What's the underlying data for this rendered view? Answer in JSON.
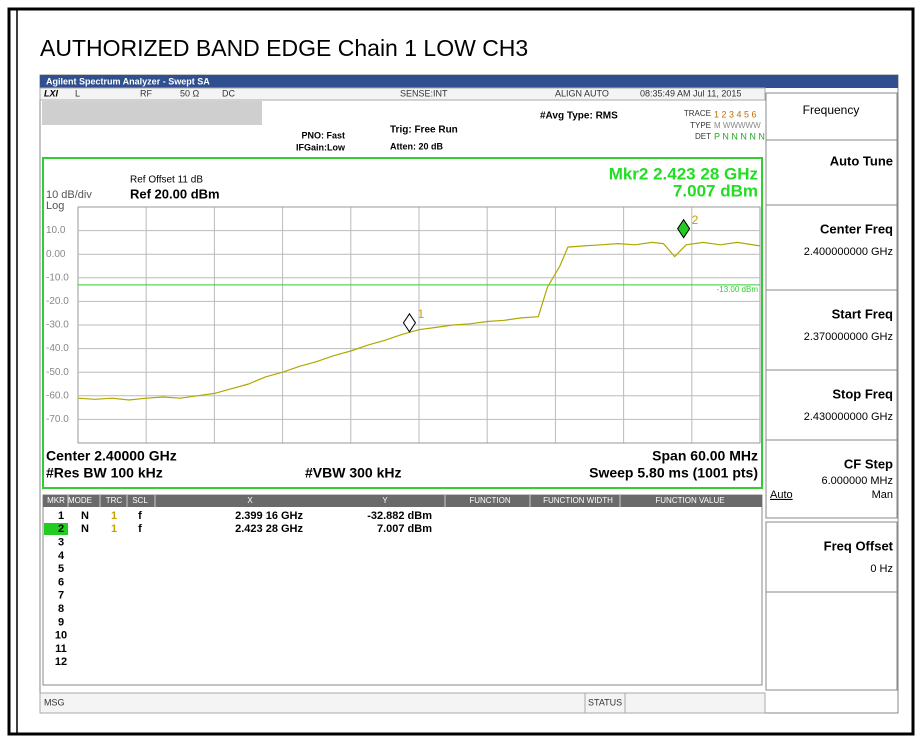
{
  "title": "AUTHORIZED BAND EDGE Chain 1 LOW CH3",
  "window_title": "Agilent Spectrum Analyzer - Swept SA",
  "status_bar": {
    "mode": "L",
    "rf": "RF",
    "impedance": "50 Ω",
    "coupling": "DC",
    "sense": "SENSE:INT",
    "align": "ALIGN AUTO",
    "time": "08:35:49 AM Jul 11, 2015"
  },
  "settings": {
    "avg_type": "#Avg Type: RMS",
    "pno": "PNO: Fast",
    "ifgain": "IFGain:Low",
    "trig": "Trig: Free Run",
    "atten": "Atten: 20 dB",
    "trace_label": "TRACE",
    "trace_value": "1 2 3 4 5 6",
    "type_label": "TYPE",
    "type_value": "M WWWWW",
    "det_label": "DET",
    "det_value": "P N N N N N"
  },
  "display": {
    "ref_offset": "Ref Offset 11 dB",
    "scale": "10 dB/div",
    "ref": "Ref 20.00 dBm",
    "log": "Log",
    "marker_readout": [
      "Mkr2 2.423 28 GHz",
      "7.007 dBm"
    ],
    "limit_label": "-13.00 dBm",
    "center": "Center 2.40000 GHz",
    "span": "Span 60.00 MHz",
    "rbw": "#Res BW 100 kHz",
    "vbw": "#VBW 300 kHz",
    "sweep": "Sweep  5.80 ms (1001 pts)"
  },
  "chart_data": {
    "type": "line",
    "xlim": [
      2.37,
      2.43
    ],
    "ylim": [
      -80,
      20
    ],
    "yticks": [
      {
        "value": 10,
        "label": "10.0"
      },
      {
        "value": 0,
        "label": "0.00"
      },
      {
        "value": -10,
        "label": "-10.0"
      },
      {
        "value": -20,
        "label": "-20.0"
      },
      {
        "value": -30,
        "label": "-30.0"
      },
      {
        "value": -40,
        "label": "-40.0"
      },
      {
        "value": -50,
        "label": "-50.0"
      },
      {
        "value": -60,
        "label": "-60.0"
      },
      {
        "value": -70,
        "label": "-70.0"
      }
    ],
    "grid": true,
    "limit": -13,
    "series": [
      {
        "color": "#b0a800",
        "x": [
          2.37,
          2.3715,
          2.373,
          2.3745,
          2.376,
          2.3775,
          2.379,
          2.3805,
          2.382,
          2.3835,
          2.385,
          2.3865,
          2.388,
          2.3895,
          2.391,
          2.3925,
          2.394,
          2.3955,
          2.397,
          2.3985,
          2.4,
          2.4015,
          2.403,
          2.4045,
          2.406,
          2.4075,
          2.409,
          2.4105,
          2.4113,
          2.4124,
          2.4131,
          2.4145,
          2.416,
          2.4175,
          2.419,
          2.4205,
          2.4215,
          2.4225,
          2.4235,
          2.425,
          2.4265,
          2.428,
          2.43
        ],
        "values": [
          -61,
          -61.5,
          -61,
          -61.8,
          -61,
          -60.5,
          -61,
          -60,
          -59,
          -57,
          -55,
          -52,
          -50,
          -47.5,
          -45.5,
          -43,
          -41,
          -38.5,
          -36.5,
          -34,
          -32,
          -31,
          -30,
          -29.5,
          -28.5,
          -28,
          -27,
          -26.5,
          -14,
          -5,
          3,
          3.5,
          4,
          4.5,
          4,
          5,
          4.5,
          -1,
          4,
          5,
          4,
          5,
          3.5
        ]
      }
    ],
    "markers": [
      {
        "label": "1",
        "x": 2.39916,
        "y": -32.882,
        "color": "#ffffff"
      },
      {
        "label": "2",
        "x": 2.42328,
        "y": 7.007,
        "color": "#22cc22"
      }
    ]
  },
  "marker_table": {
    "headers": [
      "MKR",
      "MODE",
      "TRC",
      "SCL",
      "X",
      "Y",
      "FUNCTION",
      "FUNCTION WIDTH",
      "FUNCTION VALUE"
    ],
    "rows": [
      [
        "1",
        "N",
        "1",
        "f",
        "2.399 16 GHz",
        "-32.882 dBm"
      ],
      [
        "2",
        "N",
        "1",
        "f",
        "2.423 28 GHz",
        "7.007 dBm"
      ],
      [
        "3"
      ],
      [
        "4"
      ],
      [
        "5"
      ],
      [
        "6"
      ],
      [
        "7"
      ],
      [
        "8"
      ],
      [
        "9"
      ],
      [
        "10"
      ],
      [
        "11"
      ],
      [
        "12"
      ]
    ]
  },
  "softkey_title": "Frequency",
  "softkeys": [
    {
      "label": "Auto Tune"
    },
    {
      "label": "Center Freq",
      "value": "2.400000000 GHz"
    },
    {
      "label": "Start Freq",
      "value": "2.370000000 GHz"
    },
    {
      "label": "Stop Freq",
      "value": "2.430000000 GHz"
    },
    {
      "label": "CF Step",
      "value": "6.000000 MHz",
      "options": [
        "Auto",
        "Man"
      ]
    },
    {
      "label": "Freq Offset",
      "value": "0 Hz"
    }
  ],
  "footer": {
    "msg": "MSG",
    "status": "STATUS"
  }
}
